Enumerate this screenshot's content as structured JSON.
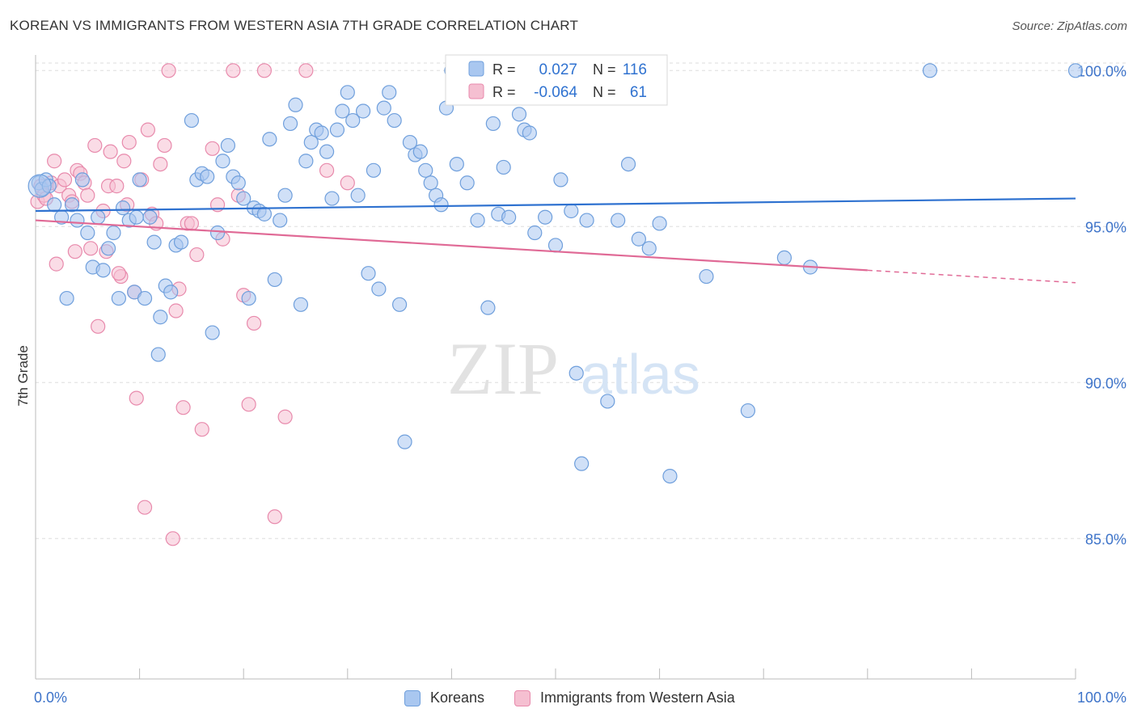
{
  "title": "KOREAN VS IMMIGRANTS FROM WESTERN ASIA 7TH GRADE CORRELATION CHART",
  "source": "Source: ZipAtlas.com",
  "watermark": {
    "zip": "ZIP",
    "atlas": "atlas"
  },
  "colors": {
    "blue_fill": "#a9c7f0",
    "blue_stroke": "#6f9fdc",
    "blue_line": "#2f72d0",
    "pink_fill": "#f5bfd1",
    "pink_stroke": "#e88aac",
    "pink_line": "#e06a96",
    "axis_text": "#3d73c9",
    "grid": "#dddddd"
  },
  "stats_legend": [
    {
      "series": "Koreans",
      "r_label": "R =",
      "r_value": "0.027",
      "n_label": "N =",
      "n_value": "116"
    },
    {
      "series": "Immigrants from Western Asia",
      "r_label": "R =",
      "r_value": "-0.064",
      "n_label": "N =",
      "n_value": "61"
    }
  ],
  "chart_data": {
    "type": "scatter",
    "title": "KOREAN VS IMMIGRANTS FROM WESTERN ASIA 7TH GRADE CORRELATION CHART",
    "xlabel": "",
    "ylabel": "7th Grade",
    "xlim": [
      0,
      100
    ],
    "ylim": [
      80.5,
      100.5
    ],
    "x_tick_labels": [
      "0.0%",
      "100.0%"
    ],
    "y_ticks": [
      85,
      90,
      95,
      100
    ],
    "y_tick_labels": [
      "85.0%",
      "90.0%",
      "95.0%",
      "100.0%"
    ],
    "grid": true,
    "legend_position": "bottom",
    "series": [
      {
        "name": "Koreans",
        "color": "#a9c7f0",
        "trend": {
          "x0": 0,
          "y0": 95.5,
          "x1": 100,
          "y1": 95.9
        },
        "points": [
          [
            0.3,
            96.4
          ],
          [
            0.6,
            96.2
          ],
          [
            1.0,
            96.5
          ],
          [
            1.3,
            96.3
          ],
          [
            2.5,
            95.3
          ],
          [
            3.5,
            95.7
          ],
          [
            4.0,
            95.2
          ],
          [
            4.5,
            96.5
          ],
          [
            5.0,
            94.8
          ],
          [
            5.5,
            93.7
          ],
          [
            6.0,
            95.3
          ],
          [
            6.5,
            93.6
          ],
          [
            7.0,
            94.3
          ],
          [
            7.5,
            94.8
          ],
          [
            8.0,
            92.7
          ],
          [
            8.4,
            95.6
          ],
          [
            9.0,
            95.2
          ],
          [
            9.5,
            92.9
          ],
          [
            10.0,
            96.5
          ],
          [
            10.5,
            92.7
          ],
          [
            11.0,
            95.3
          ],
          [
            11.4,
            94.5
          ],
          [
            12.0,
            92.1
          ],
          [
            12.5,
            93.1
          ],
          [
            13.0,
            92.9
          ],
          [
            13.5,
            94.4
          ],
          [
            14.0,
            94.5
          ],
          [
            15.0,
            98.4
          ],
          [
            15.5,
            96.5
          ],
          [
            16.0,
            96.7
          ],
          [
            16.5,
            96.6
          ],
          [
            17.0,
            91.6
          ],
          [
            17.5,
            94.8
          ],
          [
            18.0,
            97.1
          ],
          [
            18.5,
            97.6
          ],
          [
            19.0,
            96.6
          ],
          [
            19.5,
            96.4
          ],
          [
            20.0,
            95.9
          ],
          [
            20.5,
            92.7
          ],
          [
            21.0,
            95.6
          ],
          [
            21.5,
            95.5
          ],
          [
            22.0,
            95.4
          ],
          [
            22.5,
            97.8
          ],
          [
            23.0,
            93.3
          ],
          [
            23.5,
            95.2
          ],
          [
            24.0,
            96.0
          ],
          [
            24.5,
            98.3
          ],
          [
            25.0,
            98.9
          ],
          [
            25.5,
            92.5
          ],
          [
            26.0,
            97.1
          ],
          [
            26.5,
            97.7
          ],
          [
            27.0,
            98.1
          ],
          [
            27.5,
            98.0
          ],
          [
            28.0,
            97.4
          ],
          [
            28.5,
            95.9
          ],
          [
            29.0,
            98.1
          ],
          [
            29.5,
            98.7
          ],
          [
            30.0,
            99.3
          ],
          [
            30.5,
            98.4
          ],
          [
            31.0,
            96.0
          ],
          [
            31.5,
            98.7
          ],
          [
            32.0,
            93.5
          ],
          [
            32.5,
            96.8
          ],
          [
            33.0,
            93.0
          ],
          [
            33.5,
            98.8
          ],
          [
            34.0,
            99.3
          ],
          [
            34.5,
            98.4
          ],
          [
            35.0,
            92.5
          ],
          [
            35.5,
            88.1
          ],
          [
            36.0,
            97.7
          ],
          [
            36.5,
            97.3
          ],
          [
            37.0,
            97.4
          ],
          [
            37.5,
            96.8
          ],
          [
            38.0,
            96.4
          ],
          [
            38.5,
            96.0
          ],
          [
            39.0,
            95.7
          ],
          [
            39.5,
            98.8
          ],
          [
            40.0,
            100.0
          ],
          [
            40.5,
            97.0
          ],
          [
            41.5,
            96.4
          ],
          [
            42.5,
            95.2
          ],
          [
            43.5,
            92.4
          ],
          [
            44.0,
            98.3
          ],
          [
            44.5,
            95.4
          ],
          [
            45.0,
            96.9
          ],
          [
            45.5,
            95.3
          ],
          [
            46.0,
            100.0
          ],
          [
            46.5,
            98.6
          ],
          [
            47.0,
            98.1
          ],
          [
            47.5,
            98.0
          ],
          [
            48.0,
            94.8
          ],
          [
            49.0,
            95.3
          ],
          [
            50.0,
            94.4
          ],
          [
            50.5,
            96.5
          ],
          [
            51.5,
            95.5
          ],
          [
            52.0,
            90.3
          ],
          [
            52.5,
            87.4
          ],
          [
            53.0,
            95.2
          ],
          [
            55.0,
            89.4
          ],
          [
            56.0,
            95.2
          ],
          [
            57.0,
            97.0
          ],
          [
            58.0,
            94.6
          ],
          [
            59.0,
            94.3
          ],
          [
            60.0,
            95.1
          ],
          [
            61.0,
            87.0
          ],
          [
            64.5,
            93.4
          ],
          [
            68.5,
            89.1
          ],
          [
            72.0,
            94.0
          ],
          [
            74.5,
            93.7
          ],
          [
            86.0,
            100.0
          ],
          [
            100.0,
            100.0
          ],
          [
            1.8,
            95.7
          ],
          [
            3.0,
            92.7
          ],
          [
            9.7,
            95.3
          ],
          [
            11.8,
            90.9
          ],
          [
            40.2,
            99.8
          ]
        ]
      },
      {
        "name": "Immigrants from Western Asia",
        "color": "#f5bfd1",
        "trend": {
          "x0": 0,
          "y0": 95.2,
          "x1": 80,
          "y1": 93.6,
          "dash_to_x": 100,
          "dash_to_y": 93.2
        },
        "points": [
          [
            0.2,
            95.8
          ],
          [
            0.5,
            96.3
          ],
          [
            0.8,
            96.0
          ],
          [
            1.0,
            95.9
          ],
          [
            1.5,
            96.4
          ],
          [
            1.8,
            97.1
          ],
          [
            2.0,
            93.8
          ],
          [
            2.3,
            96.3
          ],
          [
            2.8,
            96.5
          ],
          [
            3.2,
            96.0
          ],
          [
            3.5,
            95.8
          ],
          [
            4.0,
            96.8
          ],
          [
            4.3,
            96.7
          ],
          [
            4.7,
            96.4
          ],
          [
            5.0,
            96.0
          ],
          [
            5.3,
            94.3
          ],
          [
            5.7,
            97.6
          ],
          [
            6.0,
            91.8
          ],
          [
            6.5,
            95.5
          ],
          [
            7.0,
            96.3
          ],
          [
            7.2,
            97.4
          ],
          [
            7.8,
            96.3
          ],
          [
            8.2,
            93.4
          ],
          [
            8.5,
            97.1
          ],
          [
            8.8,
            95.7
          ],
          [
            9.0,
            97.7
          ],
          [
            9.5,
            92.9
          ],
          [
            9.7,
            89.5
          ],
          [
            10.2,
            96.5
          ],
          [
            10.5,
            86.0
          ],
          [
            10.8,
            98.1
          ],
          [
            11.2,
            95.4
          ],
          [
            11.6,
            95.1
          ],
          [
            12.0,
            97.0
          ],
          [
            12.4,
            97.6
          ],
          [
            12.8,
            100.0
          ],
          [
            13.2,
            85.0
          ],
          [
            13.5,
            92.3
          ],
          [
            13.8,
            93.0
          ],
          [
            14.2,
            89.2
          ],
          [
            14.6,
            95.1
          ],
          [
            15.0,
            95.1
          ],
          [
            15.5,
            94.1
          ],
          [
            16.0,
            88.5
          ],
          [
            17.0,
            97.5
          ],
          [
            17.5,
            95.7
          ],
          [
            18.0,
            94.6
          ],
          [
            19.0,
            100.0
          ],
          [
            19.5,
            96.0
          ],
          [
            20.0,
            92.8
          ],
          [
            20.5,
            89.3
          ],
          [
            21.0,
            91.9
          ],
          [
            22.0,
            100.0
          ],
          [
            23.0,
            85.7
          ],
          [
            24.0,
            88.9
          ],
          [
            26.0,
            100.0
          ],
          [
            28.0,
            96.8
          ],
          [
            30.0,
            96.4
          ],
          [
            3.8,
            94.2
          ],
          [
            6.8,
            94.2
          ],
          [
            8.0,
            93.5
          ]
        ]
      }
    ]
  }
}
